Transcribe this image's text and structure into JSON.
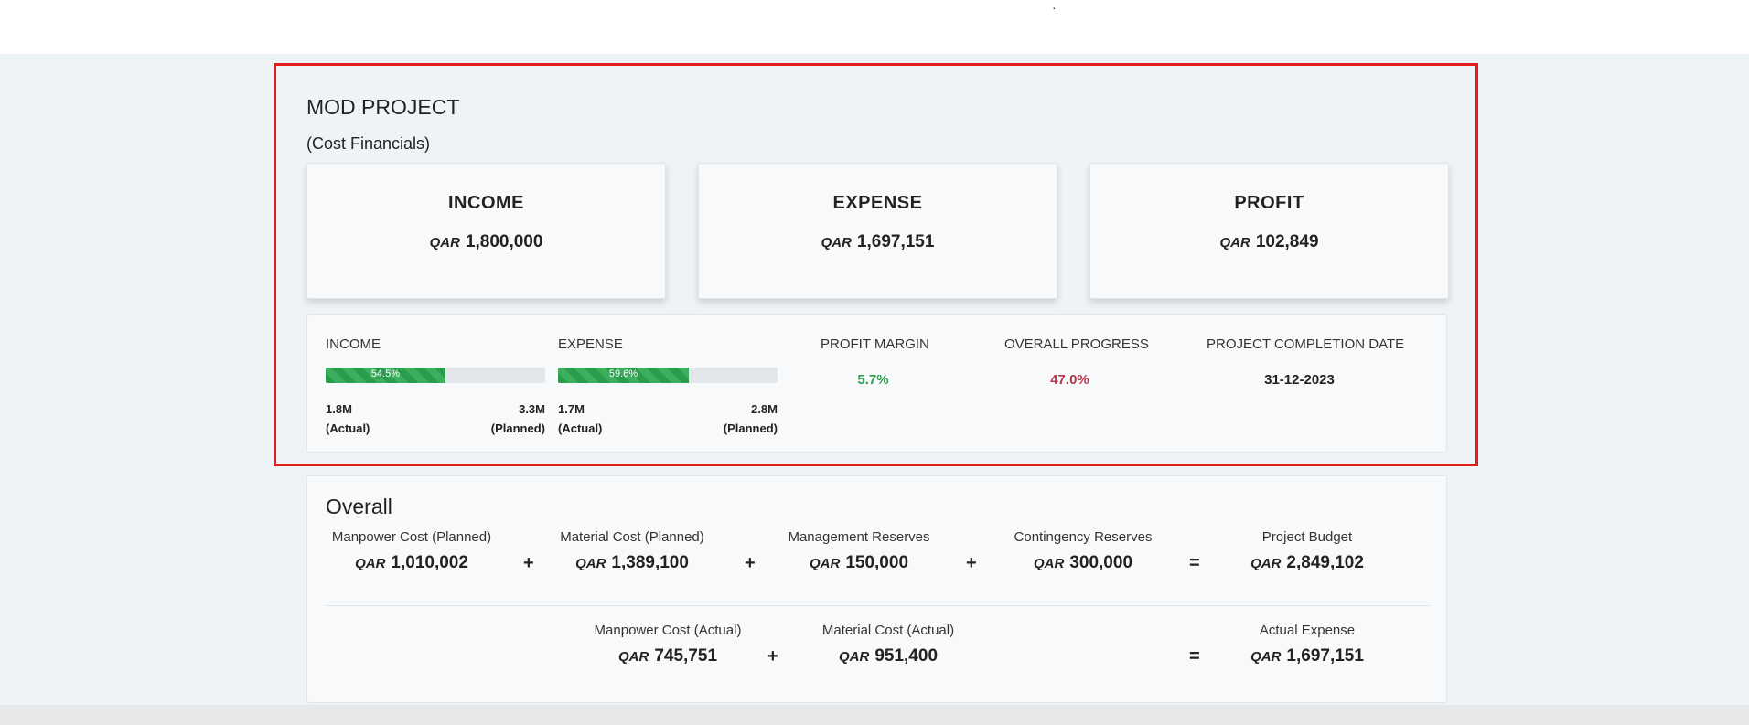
{
  "currency": "QAR",
  "project": {
    "title": "MOD PROJECT",
    "subtitle": "(Cost Financials)"
  },
  "cards": [
    {
      "title": "INCOME",
      "amount": "1,800,000"
    },
    {
      "title": "EXPENSE",
      "amount": "1,697,151"
    },
    {
      "title": "PROFIT",
      "amount": "102,849",
      "color": "#2e9b4f"
    }
  ],
  "summary": {
    "income": {
      "label": "INCOME",
      "percent": 54.5,
      "percent_label": "54.5%",
      "actual": "1.8M",
      "actual_caption": "(Actual)",
      "planned": "3.3M",
      "planned_caption": "(Planned)"
    },
    "expense": {
      "label": "EXPENSE",
      "percent": 59.6,
      "percent_label": "59.6%",
      "actual": "1.7M",
      "actual_caption": "(Actual)",
      "planned": "2.8M",
      "planned_caption": "(Planned)"
    },
    "profit_margin": {
      "label": "PROFIT MARGIN",
      "value": "5.7%",
      "color": "#2e9b4f"
    },
    "overall_progress": {
      "label": "OVERALL PROGRESS",
      "value": "47.0%",
      "color": "#b8344a"
    },
    "completion_date": {
      "label": "PROJECT COMPLETION DATE",
      "value": "31-12-2023"
    }
  },
  "overall": {
    "title": "Overall",
    "planned_row": [
      {
        "label": "Manpower Cost (Planned)",
        "amount": "1,010,002"
      },
      {
        "label": "Material Cost (Planned)",
        "amount": "1,389,100"
      },
      {
        "label": "Management Reserves",
        "amount": "150,000"
      },
      {
        "label": "Contingency Reserves",
        "amount": "300,000"
      },
      {
        "label": "Project Budget",
        "amount": "2,849,102"
      }
    ],
    "actual_row": [
      {
        "label": "Manpower Cost (Actual)",
        "amount": "745,751"
      },
      {
        "label": "Material Cost (Actual)",
        "amount": "951,400"
      },
      {
        "label": "Actual Expense",
        "amount": "1,697,151",
        "color": "#2e9b4f"
      }
    ],
    "operators": {
      "plus": "+",
      "equals": "="
    }
  }
}
